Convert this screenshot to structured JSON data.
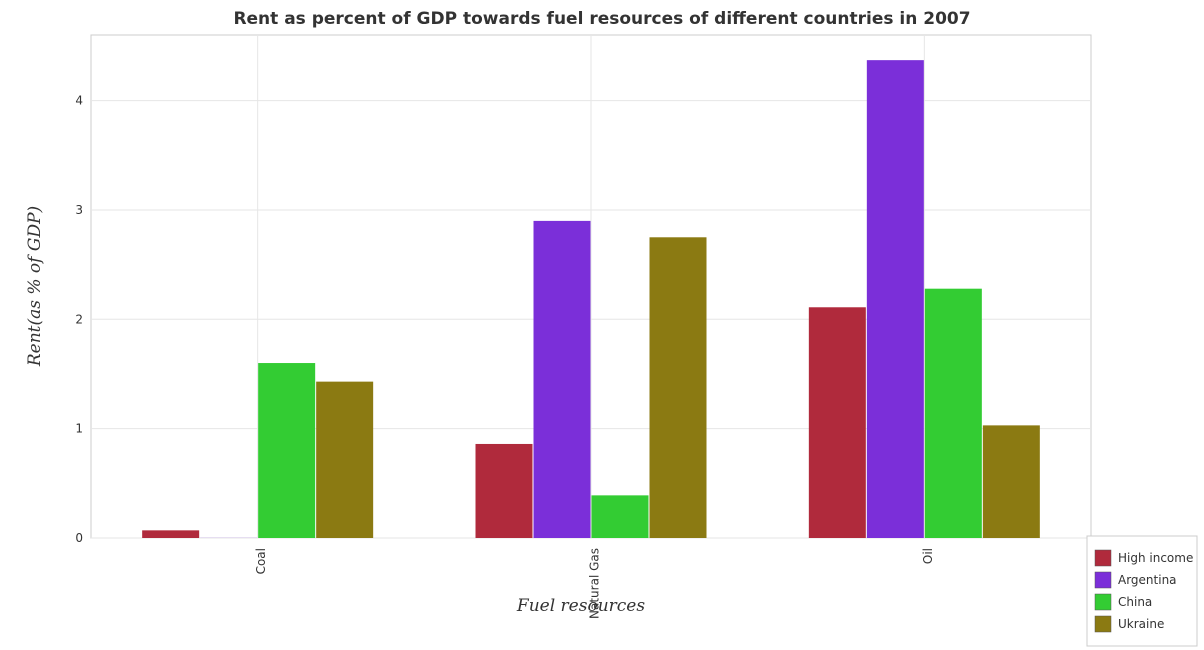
{
  "chart_data": {
    "type": "bar",
    "title": "Rent as percent of GDP towards fuel resources of different countries in 2007",
    "xlabel": "Fuel resources",
    "ylabel": "Rent(as % of GDP)",
    "categories": [
      "Coal",
      "Natural Gas",
      "Oil"
    ],
    "ylim": [
      0,
      4.6
    ],
    "yticks": [
      0,
      1,
      2,
      3,
      4
    ],
    "grid": true,
    "legend_position": "bottom-right",
    "series": [
      {
        "name": "High income",
        "color": "#b02a3c",
        "values": [
          0.07,
          0.86,
          2.11
        ]
      },
      {
        "name": "Argentina",
        "color": "#7b2fd9",
        "values": [
          0.001,
          2.9,
          4.37
        ]
      },
      {
        "name": "China",
        "color": "#33cc33",
        "values": [
          1.6,
          0.39,
          2.28
        ]
      },
      {
        "name": "Ukraine",
        "color": "#8b7a12",
        "values": [
          1.43,
          2.75,
          1.03
        ]
      }
    ]
  }
}
